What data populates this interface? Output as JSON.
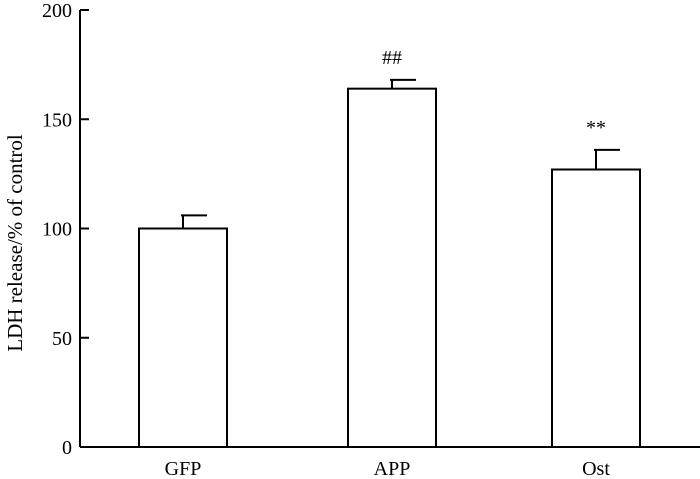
{
  "chart_data": {
    "type": "bar",
    "title": "",
    "xlabel": "",
    "ylabel": "LDH release/% of control",
    "categories": [
      "GFP",
      "APP",
      "Ost"
    ],
    "values": [
      100,
      164,
      127
    ],
    "errors": [
      6,
      4,
      9
    ],
    "annotations": [
      "",
      "##",
      "**"
    ],
    "ylim": [
      0,
      200
    ],
    "yticks": [
      0,
      50,
      100,
      150,
      200
    ],
    "grid": false,
    "bar_fill": "#ffffff",
    "bar_stroke": "#000000"
  }
}
